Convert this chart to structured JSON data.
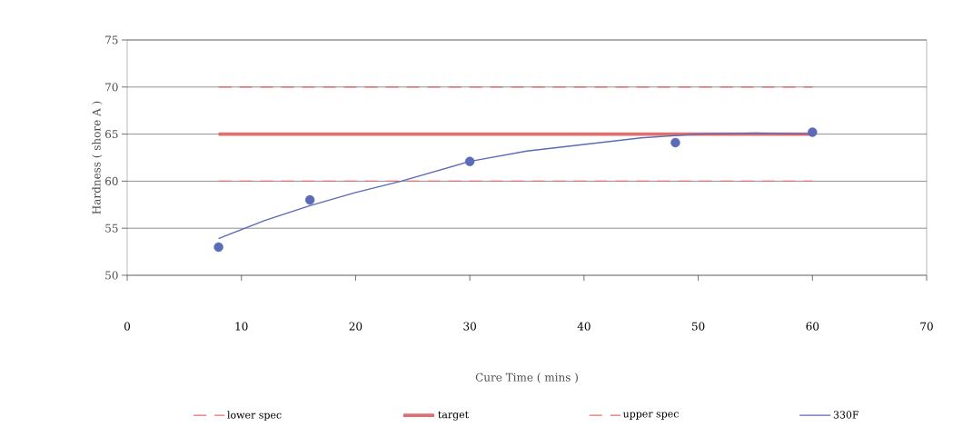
{
  "chart_data": {
    "type": "scatter",
    "xlabel": "Cure Time ( mins )",
    "ylabel": "Hardness ( shore A )",
    "xlim": [
      0,
      70
    ],
    "ylim": [
      50,
      75
    ],
    "xticks": [
      0,
      10,
      20,
      30,
      40,
      50,
      60,
      70
    ],
    "yticks": [
      50,
      55,
      60,
      65,
      70,
      75
    ],
    "grid": "y",
    "legend": "bottom",
    "series": [
      {
        "name": "lower spec",
        "type": "line",
        "x": [
          8,
          60
        ],
        "values": [
          60,
          60
        ],
        "color": "#e07070",
        "line_style": "dashed",
        "marker": "none"
      },
      {
        "name": "target",
        "type": "line",
        "x": [
          8,
          60
        ],
        "values": [
          65,
          65
        ],
        "color": "#e07070",
        "line_style": "solid",
        "marker": "none"
      },
      {
        "name": "upper spec",
        "type": "line",
        "x": [
          8,
          60
        ],
        "values": [
          70,
          70
        ],
        "color": "#e07070",
        "line_style": "dashed",
        "marker": "none"
      },
      {
        "name": "330F",
        "type": "line",
        "x": [
          8,
          12,
          16,
          20,
          24,
          30,
          35,
          40,
          45,
          50,
          55,
          60
        ],
        "values": [
          53.9,
          55.8,
          57.4,
          58.8,
          60.0,
          62.1,
          63.2,
          63.9,
          64.6,
          65.0,
          65.1,
          65.0
        ],
        "color": "#5b6bb8",
        "line_style": "solid",
        "marker": "none"
      },
      {
        "x": [
          8,
          16,
          30,
          48,
          60
        ],
        "values": [
          53.0,
          58.0,
          62.1,
          64.1,
          65.2
        ],
        "color": "#5b6bb8",
        "marker": "circle"
      }
    ]
  }
}
